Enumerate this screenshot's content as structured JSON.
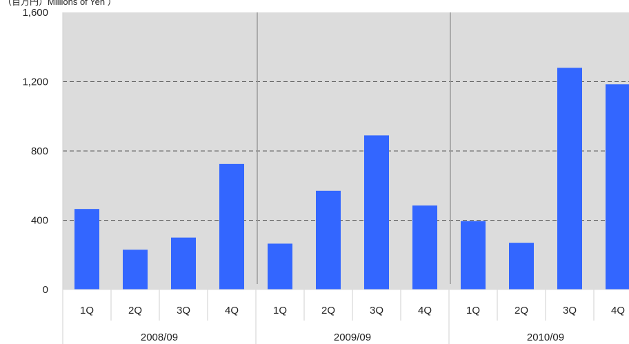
{
  "chart_data": {
    "type": "bar",
    "unit_label": "（百万円）Millions of Yen ）",
    "title": "",
    "xlabel": "",
    "ylabel": "",
    "ylim": [
      0,
      1600
    ],
    "yticks": [
      0,
      400,
      800,
      1200,
      1600
    ],
    "ytick_labels": [
      "0",
      "400",
      "800",
      "1,200",
      "1,600"
    ],
    "grid": true,
    "groups": [
      {
        "label": "2008/09",
        "quarters": [
          "1Q",
          "2Q",
          "3Q",
          "4Q"
        ],
        "values": [
          465,
          230,
          300,
          725
        ]
      },
      {
        "label": "2009/09",
        "quarters": [
          "1Q",
          "2Q",
          "3Q",
          "4Q"
        ],
        "values": [
          265,
          570,
          890,
          485
        ]
      },
      {
        "label": "2010/09",
        "quarters": [
          "1Q",
          "2Q",
          "3Q",
          "4Q"
        ],
        "values": [
          395,
          270,
          1280,
          1185
        ]
      }
    ],
    "colors": {
      "bar": "#3366ff",
      "plot_bg": "#dcdcdc",
      "grid": "#555555",
      "separator": "#999999",
      "axis_text": "#222222"
    }
  }
}
